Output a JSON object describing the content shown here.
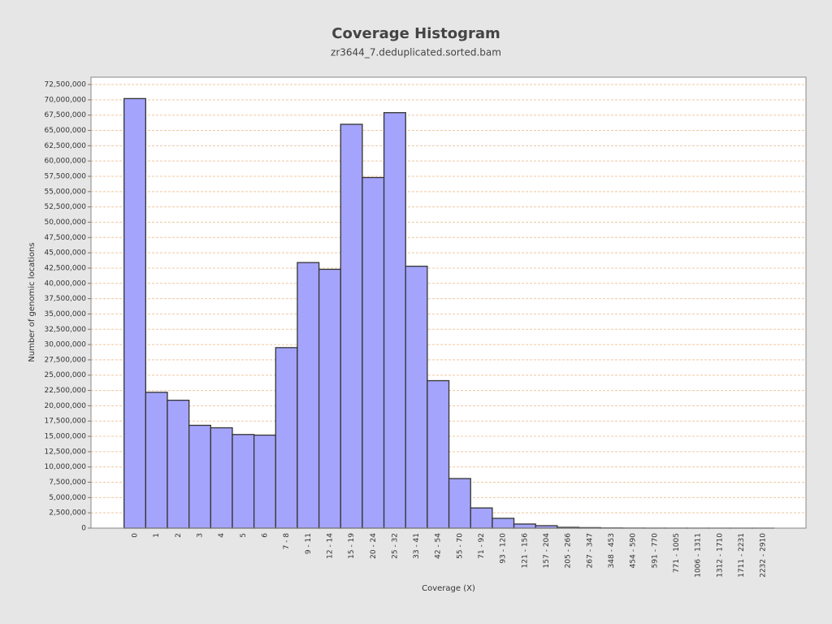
{
  "chart_data": {
    "type": "bar",
    "title": "Coverage Histogram",
    "subtitle": "zr3644_7.deduplicated.sorted.bam",
    "x_label": "Coverage (X)",
    "y_label": "Number of genomic locations",
    "categories": [
      "0",
      "1",
      "2",
      "3",
      "4",
      "5",
      "6",
      "7 - 8",
      "9 - 11",
      "12 - 14",
      "15 - 19",
      "20 - 24",
      "25 - 32",
      "33 - 41",
      "42 - 54",
      "55 - 70",
      "71 - 92",
      "93 - 120",
      "121 - 156",
      "157 - 204",
      "205 - 266",
      "267 - 347",
      "348 - 453",
      "454 - 590",
      "591 - 770",
      "771 - 1005",
      "1006 - 1311",
      "1312 - 1710",
      "1711 - 2231",
      "2232 - 2910"
    ],
    "values": [
      70200000,
      22200000,
      20900000,
      16800000,
      16400000,
      15300000,
      15200000,
      29500000,
      43400000,
      42300000,
      66000000,
      57300000,
      67900000,
      42800000,
      24100000,
      8100000,
      3300000,
      1600000,
      670000,
      400000,
      130000,
      80000,
      30000,
      15000,
      8000,
      4000,
      2000,
      1000,
      500,
      200
    ],
    "color": "#a4a4fc",
    "ylim": [
      0,
      73700000
    ],
    "yticks": [
      0,
      {
        "value": 2500000,
        "label": "2,500,000"
      },
      {
        "value": 5000000,
        "label": "5,000,000"
      },
      {
        "value": 7500000,
        "label": "7,500,000"
      },
      {
        "value": 10000000,
        "label": "10,000,000"
      },
      {
        "value": 12500000,
        "label": "12,500,000"
      },
      {
        "value": 15000000,
        "label": "15,000,000"
      },
      {
        "value": 17500000,
        "label": "17,500,000"
      },
      {
        "value": 20000000,
        "label": "20,000,000"
      },
      {
        "value": 22500000,
        "label": "22,500,000"
      },
      {
        "value": 25000000,
        "label": "25,000,000"
      },
      {
        "value": 27500000,
        "label": "27,500,000"
      },
      {
        "value": 30000000,
        "label": "30,000,000"
      },
      {
        "value": 32500000,
        "label": "32,500,000"
      },
      {
        "value": 35000000,
        "label": "35,000,000"
      },
      {
        "value": 37500000,
        "label": "37,500,000"
      },
      {
        "value": 40000000,
        "label": "40,000,000"
      },
      {
        "value": 42500000,
        "label": "42,500,000"
      },
      {
        "value": 45000000,
        "label": "45,000,000"
      },
      {
        "value": 47500000,
        "label": "47,500,000"
      },
      {
        "value": 50000000,
        "label": "50,000,000"
      },
      {
        "value": 52500000,
        "label": "52,500,000"
      },
      {
        "value": 55000000,
        "label": "55,000,000"
      },
      {
        "value": 57500000,
        "label": "57,500,000"
      },
      {
        "value": 60000000,
        "label": "60,000,000"
      },
      {
        "value": 62500000,
        "label": "62,500,000"
      },
      {
        "value": 65000000,
        "label": "65,000,000"
      },
      {
        "value": 67500000,
        "label": "67,500,000"
      },
      {
        "value": 70000000,
        "label": "70,000,000"
      },
      {
        "value": 72500000,
        "label": "72,500,000"
      }
    ],
    "grid": true
  }
}
